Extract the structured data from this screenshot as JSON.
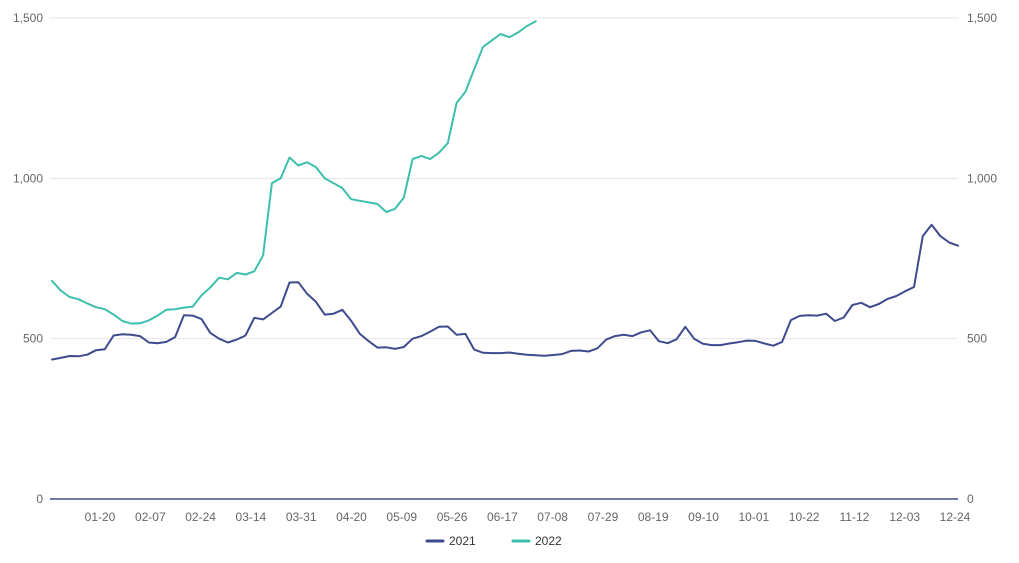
{
  "chart_data": {
    "type": "line",
    "title": "",
    "xlabel": "",
    "ylabel": "",
    "ylim": [
      0,
      1500
    ],
    "y_ticks": [
      "0",
      "500",
      "1,000",
      "1,500"
    ],
    "y_tick_values": [
      0,
      500,
      1000,
      1500
    ],
    "x_tick_labels": [
      "01-20",
      "02-07",
      "02-24",
      "03-14",
      "03-31",
      "04-20",
      "05-09",
      "05-26",
      "06-17",
      "07-08",
      "07-29",
      "08-19",
      "09-10",
      "10-01",
      "10-22",
      "11-12",
      "12-03",
      "12-24"
    ],
    "dual_y_axis": true,
    "grid": "horizontal",
    "legend_position": "bottom-center",
    "series": [
      {
        "name": "2021",
        "color": "#3f4b8c",
        "values": [
          435,
          440,
          446,
          445,
          450,
          464,
          467,
          510,
          514,
          512,
          508,
          488,
          486,
          490,
          505,
          573,
          572,
          561,
          518,
          500,
          488,
          497,
          510,
          565,
          560,
          580,
          600,
          675,
          676,
          640,
          615,
          575,
          578,
          590,
          556,
          515,
          492,
          472,
          473,
          468,
          474,
          500,
          508,
          522,
          537,
          538,
          512,
          515,
          466,
          456,
          455,
          455,
          457,
          453,
          450,
          448,
          447,
          449,
          452,
          462,
          463,
          460,
          470,
          497,
          508,
          512,
          508,
          520,
          526,
          492,
          486,
          498,
          537,
          500,
          484,
          480,
          480,
          485,
          489,
          494,
          493,
          485,
          478,
          490,
          558,
          571,
          573,
          572,
          578,
          555,
          566,
          605,
          612,
          598,
          608,
          624,
          633,
          648,
          661,
          820,
          855,
          820,
          800,
          790
        ]
      },
      {
        "name": "2022",
        "color": "#3dbfad",
        "values": [
          680,
          650,
          630,
          623,
          610,
          598,
          592,
          575,
          555,
          547,
          548,
          557,
          572,
          590,
          592,
          597,
          600,
          635,
          660,
          690,
          685,
          705,
          700,
          710,
          760,
          985,
          1000,
          1065,
          1040,
          1050,
          1035,
          1000,
          985,
          970,
          935,
          930,
          925,
          920,
          895,
          905,
          940,
          1060,
          1070,
          1060,
          1080,
          1110,
          1235,
          1270,
          1340,
          1410,
          1430,
          1450,
          1440,
          1455,
          1475,
          1490
        ]
      }
    ]
  },
  "legend": {
    "items": [
      {
        "label": "2021",
        "color": "#3f4b8c"
      },
      {
        "label": "2022",
        "color": "#3dbfad"
      }
    ]
  }
}
